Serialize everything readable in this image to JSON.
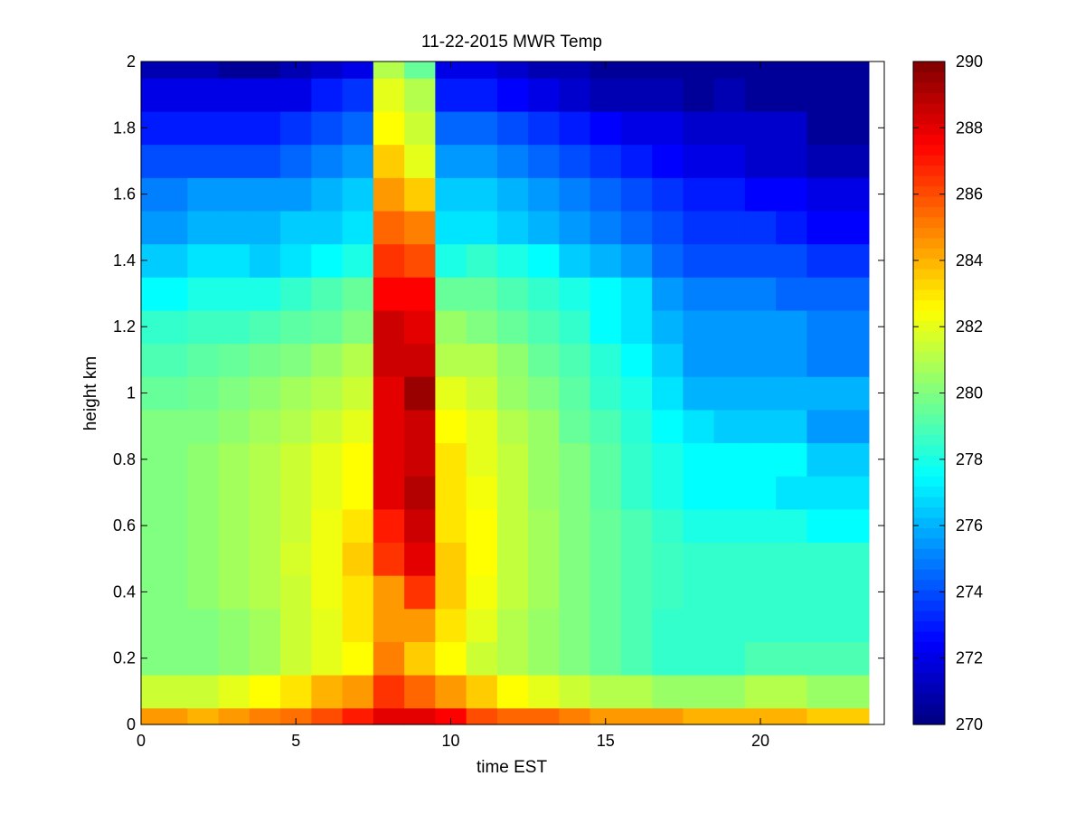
{
  "chart_data": {
    "type": "heatmap",
    "title": "11-22-2015 MWR Temp",
    "xlabel": "time EST",
    "ylabel": "height km",
    "xlim": [
      0,
      24
    ],
    "ylim": [
      0,
      2
    ],
    "x_ticks": [
      0,
      5,
      10,
      15,
      20
    ],
    "y_ticks": [
      0,
      0.2,
      0.4,
      0.6,
      0.8,
      1,
      1.2,
      1.4,
      1.6,
      1.8,
      2
    ],
    "y_tick_labels": [
      "0",
      "0.2",
      "0.4",
      "0.6",
      "0.8",
      "1",
      "1.2",
      "1.4",
      "1.6",
      "1.8",
      "2"
    ],
    "colorbar": {
      "min": 270,
      "max": 290,
      "ticks": [
        270,
        272,
        274,
        276,
        278,
        280,
        282,
        284,
        286,
        288,
        290
      ],
      "colormap": "jet"
    },
    "x_edges": [
      0,
      1.5,
      2.5,
      3.5,
      4.5,
      5.5,
      6.5,
      7.5,
      8.5,
      9.5,
      10.5,
      11.5,
      12.5,
      13.5,
      14.5,
      15.5,
      16.5,
      17.5,
      18.5,
      19.5,
      20.5,
      21.5,
      23.5
    ],
    "y_edges": [
      0,
      0.05,
      0.15,
      0.25,
      0.35,
      0.45,
      0.55,
      0.65,
      0.75,
      0.85,
      0.95,
      1.05,
      1.15,
      1.25,
      1.35,
      1.45,
      1.55,
      1.65,
      1.75,
      1.85,
      1.95,
      2
    ],
    "values": [
      [
        284.5,
        284.0,
        284.5,
        285.0,
        285.3,
        286.0,
        287.0,
        288.0,
        288.0,
        287.5,
        286.0,
        285.5,
        285.5,
        285.0,
        284.5,
        284.5,
        284.5,
        284.0,
        284.0,
        284.0,
        284.0,
        283.5
      ],
      [
        281.5,
        281.5,
        282.0,
        282.5,
        283.0,
        284.0,
        284.5,
        286.5,
        285.5,
        284.5,
        283.5,
        282.5,
        282.0,
        281.5,
        281.0,
        281.0,
        280.5,
        280.5,
        280.5,
        281.0,
        281.0,
        280.5
      ],
      [
        280.0,
        280.0,
        280.3,
        280.7,
        281.5,
        282.0,
        282.5,
        285.0,
        283.5,
        282.5,
        281.5,
        281.0,
        280.5,
        280.0,
        279.5,
        279.0,
        278.5,
        278.5,
        278.5,
        279.0,
        279.0,
        279.0
      ],
      [
        280.0,
        280.0,
        280.3,
        280.7,
        281.5,
        282.0,
        283.0,
        284.5,
        284.5,
        283.0,
        282.0,
        281.0,
        280.5,
        280.0,
        279.5,
        279.0,
        278.5,
        278.5,
        278.5,
        278.5,
        278.5,
        278.5
      ],
      [
        280.0,
        280.3,
        280.7,
        281.0,
        281.5,
        282.2,
        283.0,
        284.5,
        286.5,
        283.5,
        282.3,
        281.3,
        280.7,
        280.0,
        279.5,
        279.0,
        278.7,
        278.5,
        278.5,
        278.5,
        278.5,
        278.5
      ],
      [
        280.0,
        280.3,
        280.7,
        281.0,
        281.7,
        282.2,
        283.5,
        286.5,
        288.0,
        283.5,
        282.5,
        281.3,
        280.7,
        280.0,
        279.5,
        279.0,
        278.7,
        278.5,
        278.5,
        278.5,
        278.5,
        278.5
      ],
      [
        280.0,
        280.3,
        280.7,
        281.0,
        281.5,
        282.2,
        283.0,
        287.0,
        288.5,
        283.0,
        282.5,
        281.3,
        280.7,
        280.0,
        279.5,
        279.0,
        278.5,
        278.0,
        278.0,
        278.0,
        278.0,
        277.5
      ],
      [
        280.0,
        280.3,
        280.7,
        281.0,
        281.5,
        282.0,
        282.5,
        288.0,
        289.0,
        283.0,
        282.3,
        281.3,
        280.5,
        280.0,
        279.3,
        278.5,
        278.0,
        277.5,
        277.5,
        277.5,
        277.0,
        277.0
      ],
      [
        280.0,
        280.3,
        280.7,
        281.0,
        281.5,
        282.0,
        282.5,
        288.0,
        288.5,
        283.0,
        282.0,
        281.3,
        280.5,
        280.0,
        279.3,
        278.5,
        278.0,
        277.5,
        277.5,
        277.5,
        277.5,
        276.5
      ],
      [
        280.0,
        280.0,
        280.3,
        280.7,
        281.0,
        281.5,
        282.0,
        288.0,
        288.5,
        282.5,
        282.0,
        281.0,
        280.5,
        279.5,
        279.0,
        278.3,
        277.5,
        277.0,
        276.5,
        276.5,
        276.5,
        275.5
      ],
      [
        279.5,
        279.7,
        280.0,
        280.3,
        280.7,
        281.0,
        281.5,
        288.0,
        289.5,
        282.0,
        281.5,
        280.5,
        280.0,
        279.3,
        278.5,
        278.0,
        277.0,
        276.0,
        276.0,
        276.0,
        276.0,
        276.0
      ],
      [
        279.0,
        279.3,
        279.5,
        279.8,
        280.0,
        280.5,
        281.0,
        288.5,
        288.5,
        281.0,
        281.0,
        280.3,
        279.5,
        279.0,
        278.3,
        277.5,
        276.5,
        275.5,
        275.5,
        275.5,
        275.5,
        275.0
      ],
      [
        278.5,
        278.7,
        278.7,
        279.0,
        279.3,
        279.5,
        280.0,
        288.5,
        288.0,
        280.5,
        280.0,
        279.5,
        279.0,
        278.5,
        277.5,
        277.0,
        276.0,
        275.5,
        275.5,
        275.5,
        275.5,
        275.0
      ],
      [
        277.5,
        278.0,
        278.0,
        278.0,
        278.5,
        279.0,
        279.5,
        287.5,
        287.5,
        279.5,
        279.5,
        279.0,
        278.5,
        278.0,
        277.5,
        277.0,
        275.5,
        275.0,
        275.0,
        275.0,
        274.5,
        274.5
      ],
      [
        276.5,
        277.0,
        277.0,
        276.5,
        277.0,
        277.5,
        278.0,
        286.5,
        286.0,
        278.0,
        278.5,
        278.0,
        277.5,
        276.5,
        276.0,
        275.5,
        274.5,
        274.0,
        274.0,
        274.0,
        274.0,
        273.5
      ],
      [
        275.5,
        276.0,
        276.0,
        276.0,
        276.5,
        276.5,
        277.0,
        285.5,
        285.0,
        277.0,
        277.0,
        276.5,
        276.0,
        275.5,
        275.0,
        274.5,
        274.0,
        273.5,
        273.5,
        273.5,
        273.0,
        272.5
      ],
      [
        275.0,
        275.5,
        275.5,
        275.5,
        275.5,
        276.0,
        276.5,
        284.5,
        283.5,
        276.5,
        276.5,
        276.0,
        275.5,
        275.0,
        274.5,
        274.0,
        273.5,
        273.0,
        273.0,
        272.5,
        272.5,
        272.0
      ],
      [
        274.0,
        274.0,
        274.0,
        274.0,
        274.5,
        275.0,
        275.5,
        283.5,
        282.0,
        275.5,
        275.5,
        275.0,
        274.5,
        274.0,
        273.5,
        273.0,
        272.5,
        272.0,
        272.0,
        271.5,
        271.5,
        271.0
      ],
      [
        273.0,
        273.0,
        273.0,
        273.0,
        273.5,
        274.0,
        274.5,
        282.5,
        281.5,
        274.5,
        274.5,
        274.0,
        273.5,
        273.0,
        272.5,
        272.0,
        272.0,
        271.5,
        271.5,
        271.5,
        271.5,
        270.5
      ],
      [
        272.0,
        272.0,
        272.0,
        272.0,
        272.0,
        273.0,
        273.5,
        282.0,
        281.0,
        273.0,
        273.0,
        272.5,
        272.0,
        271.5,
        271.0,
        271.0,
        271.0,
        270.5,
        271.0,
        270.5,
        270.5,
        270.5
      ],
      [
        271.0,
        271.0,
        270.5,
        270.5,
        271.0,
        271.5,
        272.0,
        281.0,
        279.5,
        272.0,
        272.0,
        271.5,
        271.0,
        271.0,
        270.5,
        270.5,
        270.5,
        270.5,
        270.5,
        270.5,
        270.5,
        270.5
      ]
    ]
  }
}
